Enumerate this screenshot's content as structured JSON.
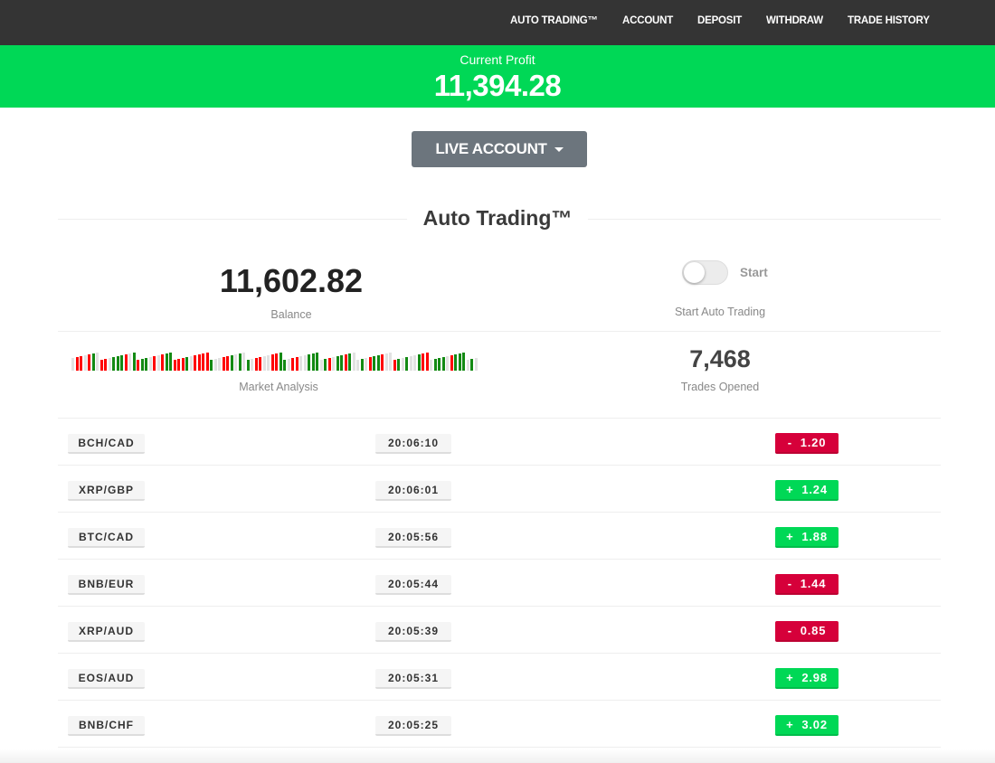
{
  "nav": {
    "items": [
      "AUTO TRADING™",
      "ACCOUNT",
      "DEPOSIT",
      "WITHDRAW",
      "TRADE HISTORY"
    ]
  },
  "profit": {
    "label": "Current Profit",
    "value": "11,394.28"
  },
  "account_dropdown": {
    "label": "LIVE ACCOUNT"
  },
  "section_title": "Auto Trading™",
  "balance": {
    "value": "11,602.82",
    "label": "Balance"
  },
  "auto_trading_toggle": {
    "state": "off",
    "label": "Start",
    "caption": "Start Auto Trading"
  },
  "market_analysis": {
    "label": "Market Analysis",
    "bar_colors": "xrrxrgxrrxgggrxgrggxrxrggrrrgxrrrrgxxrrgxgxgxrrxxrrggxrrxxgggxgrxggrgxxgxrggrxxrgxgxxgrrxgggxrgggxgx"
  },
  "trades_opened": {
    "value": "7,468",
    "label": "Trades Opened"
  },
  "colors": {
    "positive": "#00d856",
    "negative": "#d6003a",
    "navbar": "#343434",
    "bar_up": "#138a13",
    "bar_down": "#ff0000",
    "bar_neutral": "#e2e2e2"
  },
  "trades": [
    {
      "pair": "BCH/CAD",
      "time": "20:06:10",
      "result": "-  1.20",
      "direction": "down"
    },
    {
      "pair": "XRP/GBP",
      "time": "20:06:01",
      "result": "+  1.24",
      "direction": "up"
    },
    {
      "pair": "BTC/CAD",
      "time": "20:05:56",
      "result": "+  1.88",
      "direction": "up"
    },
    {
      "pair": "BNB/EUR",
      "time": "20:05:44",
      "result": "-  1.44",
      "direction": "down"
    },
    {
      "pair": "XRP/AUD",
      "time": "20:05:39",
      "result": "-  0.85",
      "direction": "down"
    },
    {
      "pair": "EOS/AUD",
      "time": "20:05:31",
      "result": "+  2.98",
      "direction": "up"
    },
    {
      "pair": "BNB/CHF",
      "time": "20:05:25",
      "result": "+  3.02",
      "direction": "up"
    }
  ]
}
